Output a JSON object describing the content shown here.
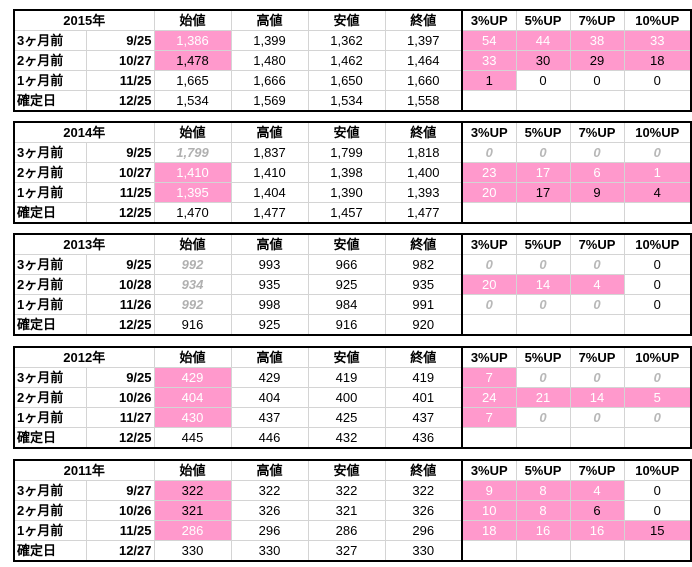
{
  "headers": {
    "open": "始値",
    "high": "高値",
    "low": "安値",
    "close": "終値",
    "up3": "3%UP",
    "up5": "5%UP",
    "up7": "7%UP",
    "up10": "10%UP"
  },
  "blocks": [
    {
      "year": "2015年",
      "rows": [
        {
          "label": "3ヶ月前",
          "date": "9/25",
          "open": "1,386",
          "high": "1,399",
          "low": "1,362",
          "close": "1,397",
          "up3": "54",
          "up5": "44",
          "up7": "38",
          "up10": "33"
        },
        {
          "label": "2ヶ月前",
          "date": "10/27",
          "open": "1,478",
          "high": "1,480",
          "low": "1,462",
          "close": "1,464",
          "up3": "33",
          "up5": "30",
          "up7": "29",
          "up10": "18"
        },
        {
          "label": "1ヶ月前",
          "date": "11/25",
          "open": "1,665",
          "high": "1,666",
          "low": "1,650",
          "close": "1,660",
          "up3": "1",
          "up5": "0",
          "up7": "0",
          "up10": "0"
        },
        {
          "label": "確定日",
          "date": "12/25",
          "open": "1,534",
          "high": "1,569",
          "low": "1,534",
          "close": "1,558",
          "up3": "",
          "up5": "",
          "up7": "",
          "up10": ""
        }
      ]
    },
    {
      "year": "2014年",
      "rows": [
        {
          "label": "3ヶ月前",
          "date": "9/25",
          "open": "1,799",
          "high": "1,837",
          "low": "1,799",
          "close": "1,818",
          "up3": "0",
          "up5": "0",
          "up7": "0",
          "up10": "0"
        },
        {
          "label": "2ヶ月前",
          "date": "10/27",
          "open": "1,410",
          "high": "1,410",
          "low": "1,398",
          "close": "1,400",
          "up3": "23",
          "up5": "17",
          "up7": "6",
          "up10": "1"
        },
        {
          "label": "1ヶ月前",
          "date": "11/25",
          "open": "1,395",
          "high": "1,404",
          "low": "1,390",
          "close": "1,393",
          "up3": "20",
          "up5": "17",
          "up7": "9",
          "up10": "4"
        },
        {
          "label": "確定日",
          "date": "12/25",
          "open": "1,470",
          "high": "1,477",
          "low": "1,457",
          "close": "1,477",
          "up3": "",
          "up5": "",
          "up7": "",
          "up10": ""
        }
      ]
    },
    {
      "year": "2013年",
      "rows": [
        {
          "label": "3ヶ月前",
          "date": "9/25",
          "open": "992",
          "high": "993",
          "low": "966",
          "close": "982",
          "up3": "0",
          "up5": "0",
          "up7": "0",
          "up10": "0"
        },
        {
          "label": "2ヶ月前",
          "date": "10/28",
          "open": "934",
          "high": "935",
          "low": "925",
          "close": "935",
          "up3": "20",
          "up5": "14",
          "up7": "4",
          "up10": "0"
        },
        {
          "label": "1ヶ月前",
          "date": "11/26",
          "open": "992",
          "high": "998",
          "low": "984",
          "close": "991",
          "up3": "0",
          "up5": "0",
          "up7": "0",
          "up10": "0"
        },
        {
          "label": "確定日",
          "date": "12/25",
          "open": "916",
          "high": "925",
          "low": "916",
          "close": "920",
          "up3": "",
          "up5": "",
          "up7": "",
          "up10": ""
        }
      ]
    },
    {
      "year": "2012年",
      "rows": [
        {
          "label": "3ヶ月前",
          "date": "9/25",
          "open": "429",
          "high": "429",
          "low": "419",
          "close": "419",
          "up3": "7",
          "up5": "0",
          "up7": "0",
          "up10": "0"
        },
        {
          "label": "2ヶ月前",
          "date": "10/26",
          "open": "404",
          "high": "404",
          "low": "400",
          "close": "401",
          "up3": "24",
          "up5": "21",
          "up7": "14",
          "up10": "5"
        },
        {
          "label": "1ヶ月前",
          "date": "11/27",
          "open": "430",
          "high": "437",
          "low": "425",
          "close": "437",
          "up3": "7",
          "up5": "0",
          "up7": "0",
          "up10": "0"
        },
        {
          "label": "確定日",
          "date": "12/25",
          "open": "445",
          "high": "446",
          "low": "432",
          "close": "436",
          "up3": "",
          "up5": "",
          "up7": "",
          "up10": ""
        }
      ]
    },
    {
      "year": "2011年",
      "rows": [
        {
          "label": "3ヶ月前",
          "date": "9/27",
          "open": "322",
          "high": "322",
          "low": "322",
          "close": "322",
          "up3": "9",
          "up5": "8",
          "up7": "4",
          "up10": "0"
        },
        {
          "label": "2ヶ月前",
          "date": "10/26",
          "open": "321",
          "high": "326",
          "low": "321",
          "close": "326",
          "up3": "10",
          "up5": "8",
          "up7": "6",
          "up10": "0"
        },
        {
          "label": "1ヶ月前",
          "date": "11/25",
          "open": "286",
          "high": "296",
          "low": "286",
          "close": "296",
          "up3": "18",
          "up5": "16",
          "up7": "16",
          "up10": "15"
        },
        {
          "label": "確定日",
          "date": "12/27",
          "open": "330",
          "high": "330",
          "low": "327",
          "close": "330",
          "up3": "",
          "up5": "",
          "up7": "",
          "up10": ""
        }
      ]
    }
  ]
}
